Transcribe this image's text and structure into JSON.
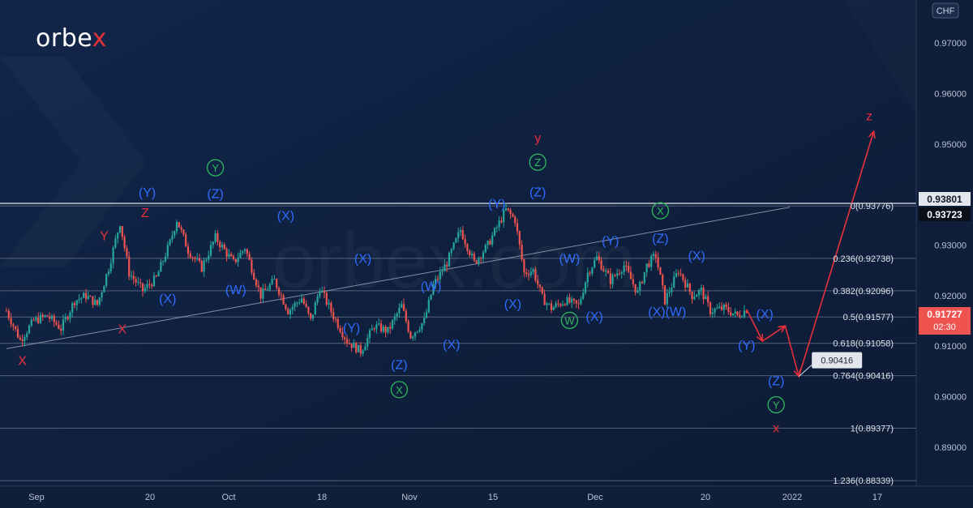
{
  "brand": {
    "logo_pre": "orbe",
    "logo_x": "x",
    "watermark": "orbex.com"
  },
  "currency": "CHF",
  "colors": {
    "background": "#0f1f3a",
    "up": "#26a69a",
    "down": "#ef5350",
    "wave_blue": "#2f6bff",
    "wave_red": "#e8303a",
    "wave_green": "#2eb85c"
  },
  "chart_data": {
    "type": "candlestick",
    "symbol_currency": "CHF",
    "x_labels": [
      "Sep",
      "20",
      "Oct",
      "18",
      "Nov",
      "15",
      "Dec",
      "20",
      "2022",
      "17"
    ],
    "y_ticks": [
      "0.97000",
      "0.96000",
      "0.95000",
      "0.93000",
      "0.92000",
      "0.91000",
      "0.90000",
      "0.89000"
    ],
    "ylim": [
      0.8823,
      0.9785
    ],
    "price_tags": [
      {
        "label": "0.93801",
        "style": "light"
      },
      {
        "label": "0.93723",
        "style": "dark"
      },
      {
        "label": "0.91727",
        "sub": "02:30",
        "style": "red"
      }
    ],
    "fib_levels": [
      {
        "label": "0(0.93776)",
        "value": 0.93776
      },
      {
        "label": "0.236(0.92738)",
        "value": 0.92738
      },
      {
        "label": "0.382(0.92096)",
        "value": 0.92096
      },
      {
        "label": "0.5(0.91577)",
        "value": 0.91577
      },
      {
        "label": "0.618(0.91058)",
        "value": 0.91058
      },
      {
        "label": "0.764(0.90416)",
        "value": 0.90416
      },
      {
        "label": "1(0.89377)",
        "value": 0.89377
      },
      {
        "label": "1.236(0.88339)",
        "value": 0.88339
      }
    ],
    "callout": "0.90416",
    "close_path": [
      [
        0,
        0.917
      ],
      [
        6,
        0.9112
      ],
      [
        12,
        0.915
      ],
      [
        18,
        0.916
      ],
      [
        24,
        0.9135
      ],
      [
        30,
        0.919
      ],
      [
        35,
        0.92
      ],
      [
        40,
        0.9182
      ],
      [
        45,
        0.9255
      ],
      [
        50,
        0.9345
      ],
      [
        54,
        0.9245
      ],
      [
        60,
        0.921
      ],
      [
        66,
        0.9235
      ],
      [
        72,
        0.9305
      ],
      [
        75,
        0.935
      ],
      [
        80,
        0.929
      ],
      [
        86,
        0.9255
      ],
      [
        92,
        0.9315
      ],
      [
        100,
        0.9265
      ],
      [
        105,
        0.9295
      ],
      [
        112,
        0.92
      ],
      [
        118,
        0.923
      ],
      [
        124,
        0.917
      ],
      [
        130,
        0.9195
      ],
      [
        134,
        0.915
      ],
      [
        138,
        0.9215
      ],
      [
        144,
        0.916
      ],
      [
        150,
        0.911
      ],
      [
        156,
        0.909
      ],
      [
        162,
        0.914
      ],
      [
        168,
        0.913
      ],
      [
        174,
        0.918
      ],
      [
        178,
        0.912
      ],
      [
        184,
        0.915
      ],
      [
        188,
        0.922
      ],
      [
        194,
        0.9265
      ],
      [
        200,
        0.933
      ],
      [
        206,
        0.9265
      ],
      [
        212,
        0.93
      ],
      [
        216,
        0.9335
      ],
      [
        220,
        0.937
      ],
      [
        224,
        0.935
      ],
      [
        228,
        0.9245
      ],
      [
        232,
        0.925
      ],
      [
        236,
        0.9195
      ],
      [
        240,
        0.9175
      ],
      [
        246,
        0.919
      ],
      [
        252,
        0.918
      ],
      [
        256,
        0.9245
      ],
      [
        260,
        0.9275
      ],
      [
        266,
        0.923
      ],
      [
        272,
        0.926
      ],
      [
        278,
        0.9205
      ],
      [
        282,
        0.926
      ],
      [
        286,
        0.928
      ],
      [
        290,
        0.919
      ],
      [
        296,
        0.925
      ],
      [
        302,
        0.92
      ],
      [
        306,
        0.921
      ],
      [
        310,
        0.917
      ],
      [
        316,
        0.9175
      ],
      [
        322,
        0.916
      ],
      [
        326,
        0.9173
      ]
    ],
    "trendline": {
      "from": [
        0,
        0.9095
      ],
      "to": [
        345,
        0.9375
      ]
    },
    "projection": [
      [
        326,
        0.9173
      ],
      [
        333,
        0.911
      ],
      [
        343,
        0.914
      ],
      [
        349,
        0.904
      ],
      [
        382,
        0.9525
      ]
    ],
    "wave_labels": [
      {
        "t": "X",
        "c": "red",
        "x": 7,
        "v": 0.9063
      },
      {
        "t": "Y",
        "c": "red",
        "x": 43,
        "v": 0.931
      },
      {
        "t": "X",
        "c": "red",
        "x": 51,
        "v": 0.9125
      },
      {
        "t": "Z",
        "c": "red",
        "x": 61,
        "v": 0.9355
      },
      {
        "t": "(Y)",
        "c": "blue",
        "x": 62,
        "v": 0.9395
      },
      {
        "t": "(X)",
        "c": "blue",
        "x": 71,
        "v": 0.9185
      },
      {
        "t": "Y",
        "c": "green",
        "circle": true,
        "x": 92,
        "v": 0.9445
      },
      {
        "t": "(Z)",
        "c": "blue",
        "x": 92,
        "v": 0.9393
      },
      {
        "t": "(W)",
        "c": "blue",
        "x": 101,
        "v": 0.9203
      },
      {
        "t": "(X)",
        "c": "blue",
        "x": 123,
        "v": 0.935
      },
      {
        "t": "(X)",
        "c": "blue",
        "x": 157,
        "v": 0.9265
      },
      {
        "t": "(W)",
        "c": "blue",
        "x": 187,
        "v": 0.921
      },
      {
        "t": "(Y)",
        "c": "blue",
        "x": 152,
        "v": 0.9128
      },
      {
        "t": "(Z)",
        "c": "blue",
        "x": 173,
        "v": 0.9055
      },
      {
        "t": "X",
        "c": "green",
        "circle": true,
        "x": 173,
        "v": 0.9006
      },
      {
        "t": "(X)",
        "c": "blue",
        "x": 196,
        "v": 0.9095
      },
      {
        "t": "(Y)",
        "c": "blue",
        "x": 216,
        "v": 0.9373
      },
      {
        "t": "(X)",
        "c": "blue",
        "x": 223,
        "v": 0.9175
      },
      {
        "t": "y",
        "c": "red",
        "x": 234,
        "v": 0.9504
      },
      {
        "t": "Z",
        "c": "green",
        "circle": true,
        "x": 234,
        "v": 0.9456
      },
      {
        "t": "(Z)",
        "c": "blue",
        "x": 234,
        "v": 0.9396
      },
      {
        "t": "(W)",
        "c": "blue",
        "x": 248,
        "v": 0.9265
      },
      {
        "t": "W",
        "c": "green",
        "circle": true,
        "x": 248,
        "v": 0.9143
      },
      {
        "t": "(X)",
        "c": "blue",
        "x": 259,
        "v": 0.915
      },
      {
        "t": "(Y)",
        "c": "blue",
        "x": 266,
        "v": 0.93
      },
      {
        "t": "(Z)",
        "c": "blue",
        "x": 288,
        "v": 0.9305
      },
      {
        "t": "X",
        "c": "green",
        "circle": true,
        "x": 288,
        "v": 0.936
      },
      {
        "t": "(X)(W)",
        "c": "blue",
        "x": 291,
        "v": 0.916
      },
      {
        "t": "(X)",
        "c": "blue",
        "x": 304,
        "v": 0.927
      },
      {
        "t": "(Y)",
        "c": "blue",
        "x": 326,
        "v": 0.9093
      },
      {
        "t": "(X)",
        "c": "blue",
        "x": 334,
        "v": 0.9155
      },
      {
        "t": "(Z)",
        "c": "blue",
        "x": 339,
        "v": 0.9023
      },
      {
        "t": "Y",
        "c": "green",
        "circle": true,
        "x": 339,
        "v": 0.8976
      },
      {
        "t": "x",
        "c": "red",
        "x": 339,
        "v": 0.893
      },
      {
        "t": "z",
        "c": "red",
        "x": 380,
        "v": 0.9547
      }
    ]
  }
}
